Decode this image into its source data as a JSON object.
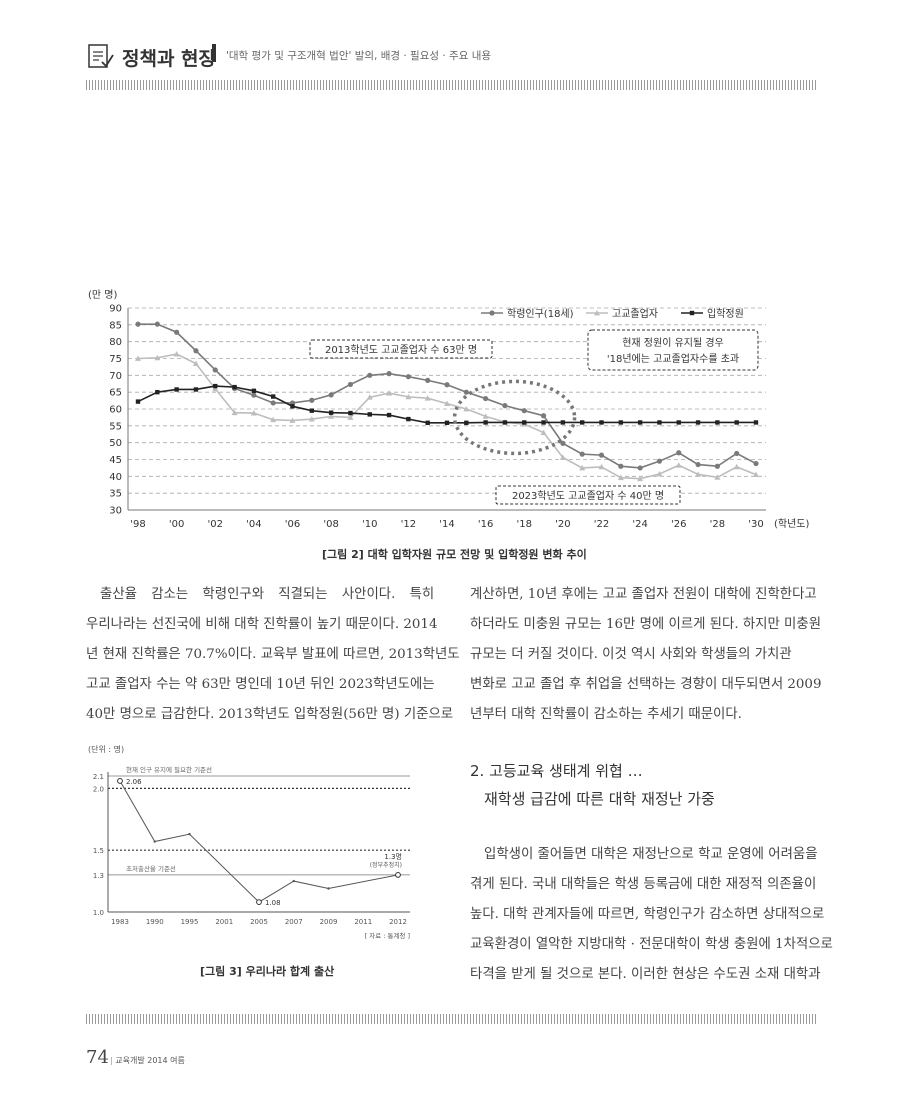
{
  "header": {
    "section": "정책과 현장",
    "subtitle": "'대학 평가 및 구조개혁 법안' 발의, 배경 · 필요성 · 주요 내용"
  },
  "figure2": {
    "caption": "[그림 2] 대학 입학자원 규모 전망 및 입학정원 변화 추이",
    "unit": "(만 명)",
    "x_unit": "(학년도)",
    "annotation_2013": "2013학년도 고교졸업자 수 63만 명",
    "annotation_2023": "2023학년도 고교졸업자 수 40만 명",
    "annotation_quota_line1": "현재 정원이 유지될 경우",
    "annotation_quota_line2": "'18년에는 고교졸업자수를 초과"
  },
  "figure3": {
    "caption": "[그림 3] 우리나라 합계 출산",
    "unit": "(단위 : 명)",
    "ref_upper": "현재 인구 유지에 필요한 기준선",
    "ref_lower": "초저출산율 기준선",
    "label_2012": "1.3명",
    "label_2012_note": "(정부추정치)",
    "label_1983": "2.06",
    "label_2005": "1.08",
    "source": "[ 자료 : 통계청 ]"
  },
  "body": {
    "left_para": [
      "출산율 감소는 학령인구와 직결되는 사안이다. 특히",
      "우리나라는 선진국에 비해 대학 진학률이 높기 때문이다. 2014",
      "년 현재 진학률은 70.7%이다. 교육부 발표에 따르면, 2013학년도",
      "고교 졸업자 수는 약 63만 명인데 10년 뒤인 2023학년도에는",
      "40만 명으로 급감한다. 2013학년도 입학정원(56만 명) 기준으로"
    ],
    "right_para1": [
      "계산하면, 10년 후에는 고교 졸업자 전원이 대학에 진학한다고",
      "하더라도 미충원 규모는 16만 명에 이르게 된다. 하지만 미충원",
      "규모는 더 커질 것이다. 이것 역시 사회와 학생들의 가치관",
      "변화로 고교 졸업 후 취업을 선택하는 경향이 대두되면서 2009",
      "년부터 대학 진학률이 감소하는 추세기 때문이다."
    ],
    "section_heading_1": "2. 고등교육 생태계 위협 …",
    "section_heading_2": "재학생 급감에 따른 대학 재정난 가중",
    "right_para2": [
      "입학생이 줄어들면 대학은 재정난으로 학교 운영에 어려움을",
      "겪게 된다. 국내 대학들은 학생 등록금에 대한 재정적 의존율이",
      "높다. 대학 관계자들에 따르면, 학령인구가 감소하면 상대적으로",
      "교육환경이 열악한 지방대학 · 전문대학이 학생 충원에 1차적으로",
      "타격을 받게 될 것으로 본다. 이러한 현상은 수도권 소재 대학과"
    ]
  },
  "footer": {
    "page": "74",
    "journal": "교육개발 2014 여름"
  },
  "colors": {
    "series_school_age": "#7a7a7a",
    "series_graduates": "#bdbdbd",
    "series_quota": "#222222",
    "text": "#333333"
  },
  "chart_data": [
    {
      "type": "line",
      "title": "",
      "xlabel": "(학년도)",
      "ylabel": "(만 명)",
      "ylim": [
        30,
        90
      ],
      "yticks": [
        30,
        35,
        40,
        45,
        50,
        55,
        60,
        65,
        70,
        75,
        80,
        85,
        90
      ],
      "xtick_labels": [
        "'98",
        "'00",
        "'02",
        "'04",
        "'06",
        "'08",
        "'10",
        "'12",
        "'14",
        "'16",
        "'18",
        "'20",
        "'22",
        "'24",
        "'26",
        "'28",
        "'30"
      ],
      "x": [
        1998,
        1999,
        2000,
        2001,
        2002,
        2003,
        2004,
        2005,
        2006,
        2007,
        2008,
        2009,
        2010,
        2011,
        2012,
        2013,
        2014,
        2015,
        2016,
        2017,
        2018,
        2019,
        2020,
        2021,
        2022,
        2023,
        2024,
        2025,
        2026,
        2027,
        2028,
        2029,
        2030
      ],
      "legend_position": "top-right",
      "grid": true,
      "series": [
        {
          "name": "학령인구(18세)",
          "marker": "circle",
          "values": [
            85.2,
            85.2,
            82.8,
            77.3,
            71.6,
            66.1,
            64.1,
            61.8,
            61.8,
            62.6,
            64.2,
            67.3,
            70.0,
            70.5,
            69.6,
            68.5,
            67.2,
            65.0,
            63.1,
            61.0,
            59.5,
            58.0,
            49.8,
            46.6,
            46.3,
            43.0,
            42.5,
            44.5,
            47.0,
            43.5,
            43.0,
            46.8,
            43.8
          ]
        },
        {
          "name": "고교졸업자",
          "marker": "triangle",
          "values": [
            75.0,
            75.2,
            76.3,
            73.5,
            66.0,
            58.9,
            58.8,
            56.8,
            56.6,
            57.0,
            57.8,
            57.5,
            63.5,
            64.7,
            63.6,
            63.2,
            61.6,
            60.0,
            57.8,
            56.1,
            55.5,
            53.0,
            45.6,
            42.5,
            42.8,
            39.6,
            39.3,
            40.7,
            43.3,
            40.6,
            39.7,
            42.8,
            40.5
          ]
        },
        {
          "name": "입학정원",
          "marker": "square",
          "values": [
            62.2,
            65.0,
            65.8,
            65.8,
            66.8,
            66.5,
            65.4,
            63.7,
            60.8,
            59.5,
            58.9,
            58.8,
            58.4,
            58.2,
            57.0,
            55.9,
            55.9,
            55.9,
            56.0,
            56.0,
            56.0,
            56.0,
            56.0,
            56.0,
            56.0,
            56.0,
            56.0,
            56.0,
            56.0,
            56.0,
            56.0,
            56.0,
            56.0
          ]
        }
      ]
    },
    {
      "type": "line",
      "title": "",
      "xlabel": "",
      "ylabel": "(단위 : 명)",
      "yticks": [
        "1.0",
        "1.3",
        "1.5",
        "2.0",
        "2.1"
      ],
      "categories": [
        "1983",
        "1990",
        "1995",
        "2001",
        "2005",
        "2007",
        "2009",
        "2011",
        "2012"
      ],
      "series": [
        {
          "values": [
            2.06,
            1.57,
            1.63,
            null,
            1.08,
            1.25,
            1.19,
            null,
            1.3
          ]
        }
      ],
      "reference_lines": [
        {
          "label": "현재 인구 유지에 필요한 기준선",
          "value": 2.1
        },
        {
          "label": "초저출산율 기준선",
          "value": 1.3
        }
      ]
    }
  ]
}
